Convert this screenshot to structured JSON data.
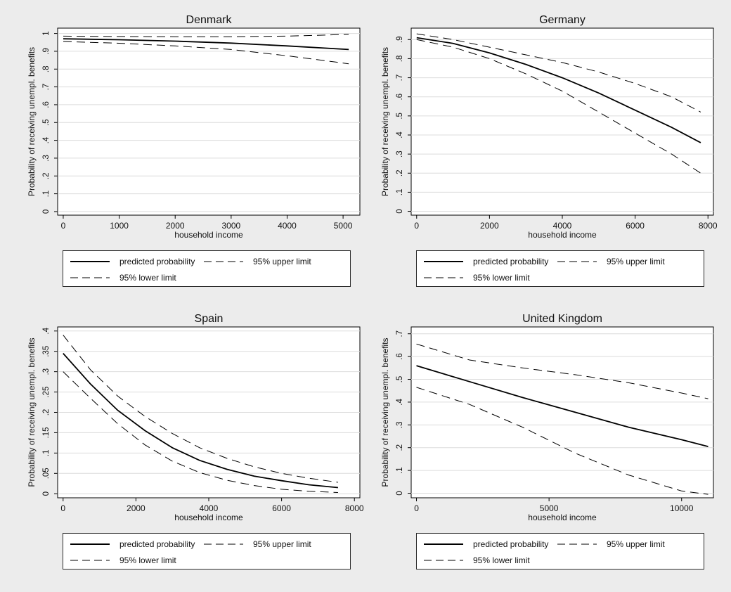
{
  "chart_data": [
    {
      "type": "line",
      "title": "Denmark",
      "xlabel": "household income",
      "ylabel": "Probability of receiving unempl. benefits",
      "xlim": [
        -100,
        5300
      ],
      "ylim": [
        -0.02,
        1.03
      ],
      "xticks": [
        0,
        1000,
        2000,
        3000,
        4000,
        5000
      ],
      "xtick_labels": [
        "0",
        "1000",
        "2000",
        "3000",
        "4000",
        "5000"
      ],
      "yticks": [
        0,
        0.1,
        0.2,
        0.3,
        0.4,
        0.5,
        0.6,
        0.7,
        0.8,
        0.9,
        1
      ],
      "ytick_labels": [
        "0",
        ".1",
        ".2",
        ".3",
        ".4",
        ".5",
        ".6",
        ".7",
        ".8",
        ".9",
        "1"
      ],
      "grid": true,
      "x": [
        0,
        1000,
        2000,
        3000,
        4000,
        5100
      ],
      "series": [
        {
          "name": "predicted probability",
          "style": "solid",
          "values": [
            0.97,
            0.965,
            0.957,
            0.946,
            0.93,
            0.91
          ]
        },
        {
          "name": "95% upper limit",
          "style": "dashed",
          "values": [
            0.985,
            0.983,
            0.982,
            0.982,
            0.985,
            0.995
          ]
        },
        {
          "name": "95% lower limit",
          "style": "dashed",
          "values": [
            0.955,
            0.945,
            0.93,
            0.91,
            0.875,
            0.83
          ]
        }
      ]
    },
    {
      "type": "line",
      "title": "Germany",
      "xlabel": "household income",
      "ylabel": "Probability of receiving unempl. benefits",
      "xlim": [
        -150,
        8150
      ],
      "ylim": [
        -0.02,
        0.96
      ],
      "xticks": [
        0,
        2000,
        4000,
        6000,
        8000
      ],
      "xtick_labels": [
        "0",
        "2000",
        "4000",
        "6000",
        "8000"
      ],
      "yticks": [
        0,
        0.1,
        0.2,
        0.3,
        0.4,
        0.5,
        0.6,
        0.7,
        0.8,
        0.9
      ],
      "ytick_labels": [
        "0",
        ".1",
        ".2",
        ".3",
        ".4",
        ".5",
        ".6",
        ".7",
        ".8",
        ".9"
      ],
      "grid": true,
      "x": [
        0,
        1000,
        2000,
        3000,
        4000,
        5000,
        6000,
        7000,
        7800
      ],
      "series": [
        {
          "name": "predicted probability",
          "style": "solid",
          "values": [
            0.91,
            0.88,
            0.83,
            0.77,
            0.7,
            0.62,
            0.53,
            0.44,
            0.36
          ]
        },
        {
          "name": "95% upper limit",
          "style": "dashed",
          "values": [
            0.93,
            0.9,
            0.86,
            0.82,
            0.78,
            0.73,
            0.67,
            0.6,
            0.52
          ]
        },
        {
          "name": "95% lower limit",
          "style": "dashed",
          "values": [
            0.9,
            0.86,
            0.8,
            0.72,
            0.63,
            0.52,
            0.41,
            0.3,
            0.2
          ]
        }
      ]
    },
    {
      "type": "line",
      "title": "Spain",
      "xlabel": "household income",
      "ylabel": "Probability of receiving unempl. benefits",
      "xlim": [
        -150,
        8150
      ],
      "ylim": [
        -0.01,
        0.41
      ],
      "xticks": [
        0,
        2000,
        4000,
        6000,
        8000
      ],
      "xtick_labels": [
        "0",
        "2000",
        "4000",
        "6000",
        "8000"
      ],
      "yticks": [
        0,
        0.05,
        0.1,
        0.15,
        0.2,
        0.25,
        0.3,
        0.35,
        0.4
      ],
      "ytick_labels": [
        "0",
        ".05",
        ".1",
        ".15",
        ".2",
        ".25",
        ".3",
        ".35",
        ".4"
      ],
      "grid": true,
      "x": [
        0,
        750,
        1500,
        2250,
        3000,
        3750,
        4500,
        5250,
        6000,
        6750,
        7550
      ],
      "series": [
        {
          "name": "predicted probability",
          "style": "solid",
          "values": [
            0.345,
            0.27,
            0.205,
            0.155,
            0.113,
            0.082,
            0.06,
            0.043,
            0.032,
            0.022,
            0.015
          ]
        },
        {
          "name": "95% upper limit",
          "style": "dashed",
          "values": [
            0.39,
            0.305,
            0.24,
            0.19,
            0.148,
            0.113,
            0.087,
            0.066,
            0.05,
            0.038,
            0.028
          ]
        },
        {
          "name": "95% lower limit",
          "style": "dashed",
          "values": [
            0.3,
            0.235,
            0.172,
            0.12,
            0.08,
            0.052,
            0.033,
            0.02,
            0.011,
            0.006,
            0.003
          ]
        }
      ]
    },
    {
      "type": "line",
      "title": "United Kingdom",
      "xlabel": "household income",
      "ylabel": "Probability of receiving unempl. benefits",
      "xlim": [
        -200,
        11200
      ],
      "ylim": [
        -0.02,
        0.73
      ],
      "xticks": [
        0,
        5000,
        10000
      ],
      "xtick_labels": [
        "0",
        "5000",
        "10000"
      ],
      "yticks": [
        0,
        0.1,
        0.2,
        0.3,
        0.4,
        0.5,
        0.6,
        0.7
      ],
      "ytick_labels": [
        "0",
        ".1",
        ".2",
        ".3",
        ".4",
        ".5",
        ".6",
        ".7"
      ],
      "grid": true,
      "x": [
        0,
        2000,
        4000,
        6000,
        8000,
        10000,
        11000
      ],
      "series": [
        {
          "name": "predicted probability",
          "style": "solid",
          "values": [
            0.56,
            0.49,
            0.42,
            0.355,
            0.29,
            0.235,
            0.205
          ]
        },
        {
          "name": "95% upper limit",
          "style": "dashed",
          "values": [
            0.655,
            0.585,
            0.55,
            0.52,
            0.485,
            0.44,
            0.415
          ]
        },
        {
          "name": "95% lower limit",
          "style": "dashed",
          "values": [
            0.465,
            0.39,
            0.29,
            0.175,
            0.08,
            0.01,
            -0.005
          ]
        }
      ]
    }
  ],
  "legends": [
    {
      "items": [
        {
          "label": "predicted probability",
          "style": "solid"
        },
        {
          "label": "95% upper limit",
          "style": "dashed"
        },
        {
          "label": "95% lower limit",
          "style": "dashed"
        }
      ]
    },
    {
      "items": [
        {
          "label": "predicted probability",
          "style": "solid"
        },
        {
          "label": "95% upper limit",
          "style": "dashed"
        },
        {
          "label": "95% lower limit",
          "style": "dashed"
        }
      ]
    },
    {
      "items": [
        {
          "label": "predicted probability",
          "style": "solid"
        },
        {
          "label": "95% upper limit",
          "style": "dashed"
        },
        {
          "label": "95% lower limit",
          "style": "dashed"
        }
      ]
    },
    {
      "items": [
        {
          "label": "predicted probability",
          "style": "solid"
        },
        {
          "label": "95% upper limit",
          "style": "dashed"
        },
        {
          "label": "95% lower limit",
          "style": "dashed"
        }
      ]
    }
  ],
  "colors": {
    "background": "#ececec",
    "plot_area": "#ffffff",
    "line": "#000000",
    "grid": "#dcdcdc"
  }
}
